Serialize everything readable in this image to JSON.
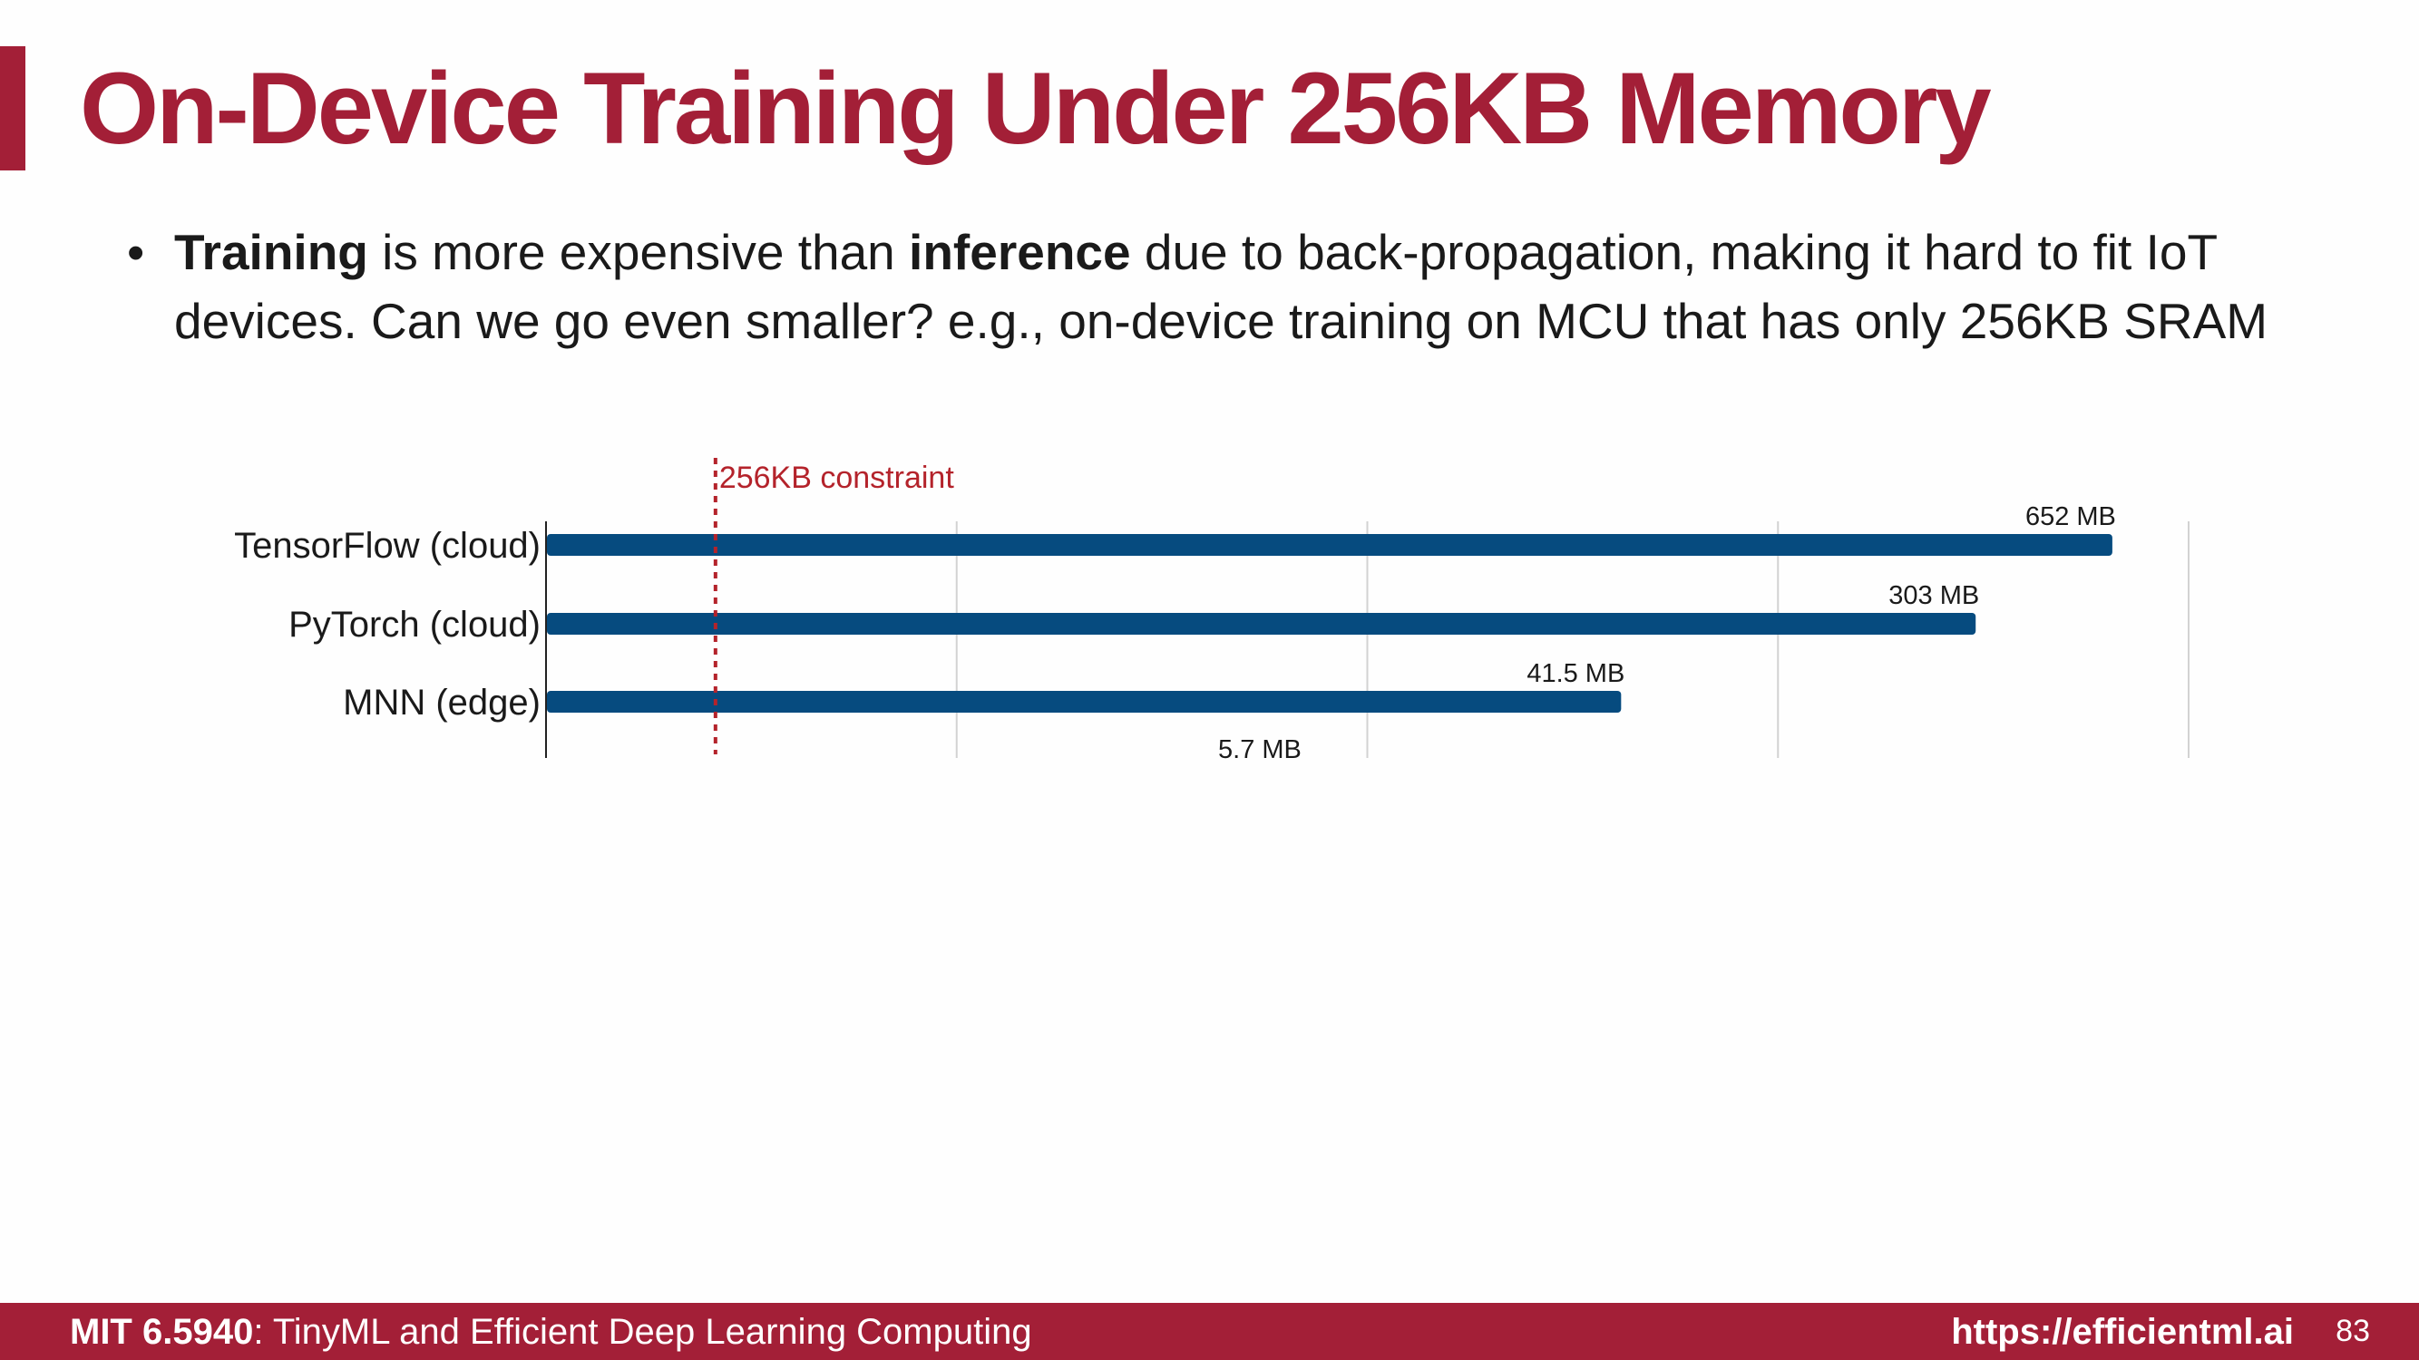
{
  "title": "On-Device Training Under 256KB Memory",
  "bullet": {
    "dot": "•",
    "p1_bold": "Training",
    "p2": " is more expensive than ",
    "p3_bold": "inference",
    "p4": " due to back-propagation, making it hard to fit IoT devices. Can we go even smaller? e.g., on-device training on MCU that has only 256KB SRAM"
  },
  "chart_data": {
    "type": "bar",
    "orientation": "horizontal",
    "categories": [
      "TensorFlow (cloud)",
      "PyTorch (cloud)",
      "MNN (edge)"
    ],
    "values": [
      652,
      303,
      41.5
    ],
    "value_labels": [
      "652 MB",
      "303 MB",
      "41.5 MB"
    ],
    "unit": "MB",
    "scale": "log",
    "xlim": [
      0.1,
      1000
    ],
    "grid": true,
    "bar_color": "#064b7f",
    "annotations": {
      "constraint": {
        "value": 0.256,
        "label": "256KB constraint",
        "color": "#b4232b",
        "style": "dashed"
      },
      "extra_value_label": {
        "value": 5.7,
        "label": "5.7 MB"
      }
    }
  },
  "footer": {
    "course_bold": "MIT 6.5940",
    "course_rest": ": TinyML and Efficient Deep Learning Computing",
    "url": "https://efficientml.ai",
    "page": "83"
  }
}
